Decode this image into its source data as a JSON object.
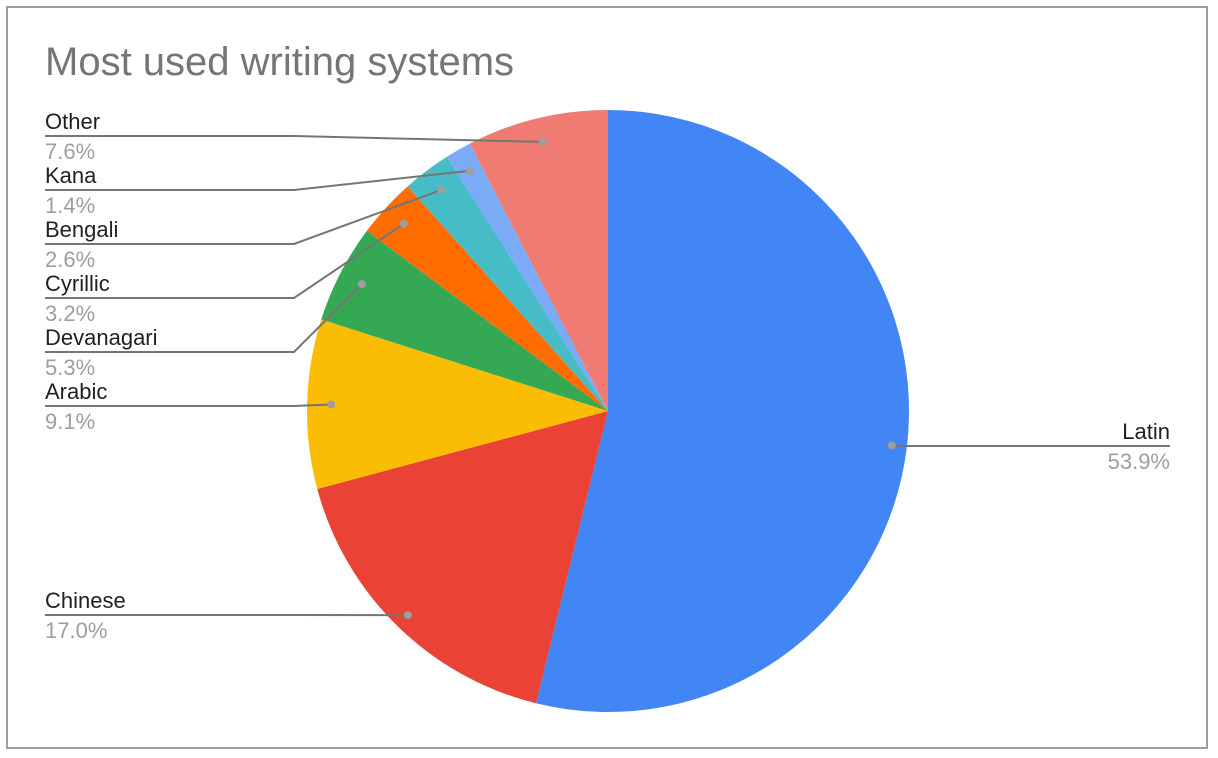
{
  "chart_data": {
    "type": "pie",
    "title": "Most used writing systems",
    "start_at": "top",
    "direction": "clockwise",
    "legend": "none",
    "slices": [
      {
        "label": "Latin",
        "value": 53.9,
        "percent_label": "53.9%",
        "color": "#4285f4",
        "label_side": "right"
      },
      {
        "label": "Chinese",
        "value": 17.0,
        "percent_label": "17.0%",
        "color": "#ea4335",
        "label_side": "left"
      },
      {
        "label": "Arabic",
        "value": 9.1,
        "percent_label": "9.1%",
        "color": "#fbbc04",
        "label_side": "left"
      },
      {
        "label": "Devanagari",
        "value": 5.3,
        "percent_label": "5.3%",
        "color": "#34a853",
        "label_side": "left"
      },
      {
        "label": "Cyrillic",
        "value": 3.2,
        "percent_label": "3.2%",
        "color": "#ff6d01",
        "label_side": "left"
      },
      {
        "label": "Bengali",
        "value": 2.6,
        "percent_label": "2.6%",
        "color": "#46bdc6",
        "label_side": "left"
      },
      {
        "label": "Kana",
        "value": 1.4,
        "percent_label": "1.4%",
        "color": "#7baaf7",
        "label_side": "left"
      },
      {
        "label": "Other",
        "value": 7.6,
        "percent_label": "7.6%",
        "color": "#f07b72",
        "label_side": "left"
      }
    ]
  }
}
